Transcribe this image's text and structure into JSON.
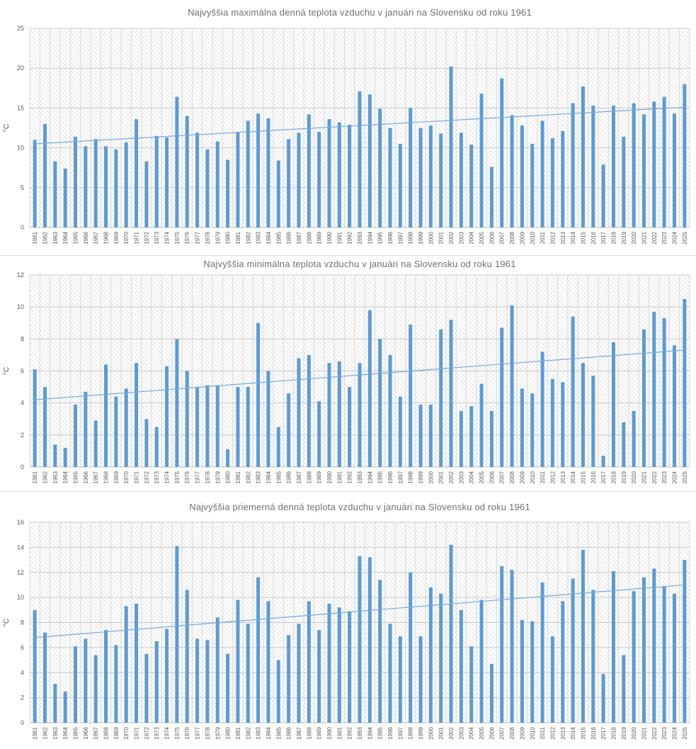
{
  "page": {
    "background": "#ffffff"
  },
  "colors": {
    "bar": "#5B9BD5",
    "trend_line": "#74A9DC",
    "title_text": "#6f6f6f",
    "axis_text": "#595959",
    "gridline_h": "#c9c9c9",
    "gridline_v": "#d9d9d9",
    "axis_line": "#bfbfbf",
    "hatch": "#e0e0e0",
    "panel_separator": "#d9d9d9"
  },
  "categories": [
    1961,
    1962,
    1963,
    1964,
    1965,
    1966,
    1967,
    1968,
    1969,
    1970,
    1971,
    1972,
    1973,
    1974,
    1975,
    1976,
    1977,
    1978,
    1979,
    1980,
    1981,
    1982,
    1983,
    1984,
    1985,
    1986,
    1987,
    1988,
    1989,
    1990,
    1991,
    1992,
    1993,
    1994,
    1995,
    1996,
    1997,
    1998,
    1999,
    2000,
    2001,
    2002,
    2003,
    2004,
    2005,
    2006,
    2007,
    2008,
    2009,
    2010,
    2011,
    2012,
    2013,
    2014,
    2015,
    2016,
    2017,
    2018,
    2019,
    2020,
    2021,
    2022,
    2023,
    2024,
    2025
  ],
  "chart_data": [
    {
      "type": "bar",
      "title": "Najvyššia maximálna denná teplota vzduchu v januári na Slovensku od roku 1961",
      "ylabel": "°C",
      "xlabel": "",
      "ylim": [
        0,
        25
      ],
      "ytick_step": 5,
      "grid": true,
      "legend_position": "none",
      "values": [
        11.0,
        13.0,
        8.3,
        7.4,
        11.4,
        10.2,
        11.1,
        10.2,
        9.8,
        10.7,
        13.6,
        8.3,
        11.5,
        11.3,
        16.4,
        14.0,
        11.9,
        9.8,
        10.8,
        8.5,
        12.0,
        13.4,
        14.3,
        13.7,
        8.4,
        11.1,
        11.9,
        14.2,
        12.0,
        13.6,
        13.2,
        12.9,
        17.1,
        16.7,
        14.9,
        12.5,
        10.5,
        15.0,
        12.5,
        12.8,
        11.8,
        20.2,
        11.9,
        10.4,
        16.8,
        7.6,
        18.7,
        14.1,
        12.8,
        10.5,
        13.4,
        11.2,
        12.1,
        15.6,
        17.7,
        15.3,
        7.9,
        15.3,
        11.4,
        15.6,
        14.2,
        15.8,
        16.4,
        14.3,
        18.0
      ],
      "trend_line": {
        "start": 10.5,
        "end": 15.1
      }
    },
    {
      "type": "bar",
      "title": "Najvyššia minimálna teplota vzduchu v januári na Slovensku od roku 1961",
      "ylabel": "°C",
      "xlabel": "",
      "ylim": [
        0,
        12
      ],
      "ytick_step": 2,
      "grid": true,
      "legend_position": "none",
      "values": [
        6.1,
        5.0,
        1.4,
        1.2,
        3.9,
        4.7,
        2.9,
        6.4,
        4.4,
        4.9,
        6.5,
        3.0,
        2.5,
        6.3,
        8.0,
        6.0,
        5.0,
        5.1,
        5.1,
        1.1,
        5.0,
        5.0,
        9.0,
        6.0,
        2.5,
        4.6,
        6.8,
        7.0,
        4.1,
        6.5,
        6.6,
        5.0,
        6.5,
        9.8,
        8.0,
        7.0,
        4.4,
        8.9,
        3.9,
        3.9,
        8.6,
        9.2,
        3.5,
        3.8,
        5.2,
        3.5,
        8.7,
        10.1,
        4.9,
        4.6,
        7.2,
        5.5,
        5.3,
        9.4,
        6.5,
        5.7,
        0.7,
        7.8,
        2.8,
        3.5,
        8.6,
        9.7,
        9.3,
        7.6,
        10.5
      ],
      "trend_line": {
        "start": 4.2,
        "end": 7.3
      }
    },
    {
      "type": "bar",
      "title": "Najvyššia priemerná denná teplota vzduchu v januári na Slovensku od roku 1961",
      "ylabel": "°C",
      "xlabel": "",
      "ylim": [
        0,
        16
      ],
      "ytick_step": 2,
      "grid": true,
      "legend_position": "none",
      "values": [
        9.0,
        7.2,
        3.1,
        2.5,
        6.1,
        6.7,
        5.4,
        7.4,
        6.2,
        9.3,
        9.5,
        5.5,
        6.5,
        7.5,
        14.1,
        10.6,
        6.7,
        6.6,
        8.4,
        5.5,
        9.8,
        7.9,
        11.6,
        9.7,
        5.0,
        7.0,
        7.9,
        9.7,
        7.4,
        9.5,
        9.2,
        8.9,
        13.3,
        13.2,
        11.4,
        7.9,
        6.9,
        12.0,
        6.9,
        10.8,
        10.3,
        14.2,
        9.0,
        6.1,
        9.8,
        4.7,
        12.5,
        12.2,
        8.2,
        8.1,
        11.2,
        6.9,
        9.7,
        11.5,
        13.8,
        10.6,
        3.9,
        12.1,
        5.4,
        10.5,
        11.6,
        12.3,
        10.9,
        10.3,
        13.0
      ],
      "trend_line": {
        "start": 6.8,
        "end": 11.0
      }
    }
  ]
}
